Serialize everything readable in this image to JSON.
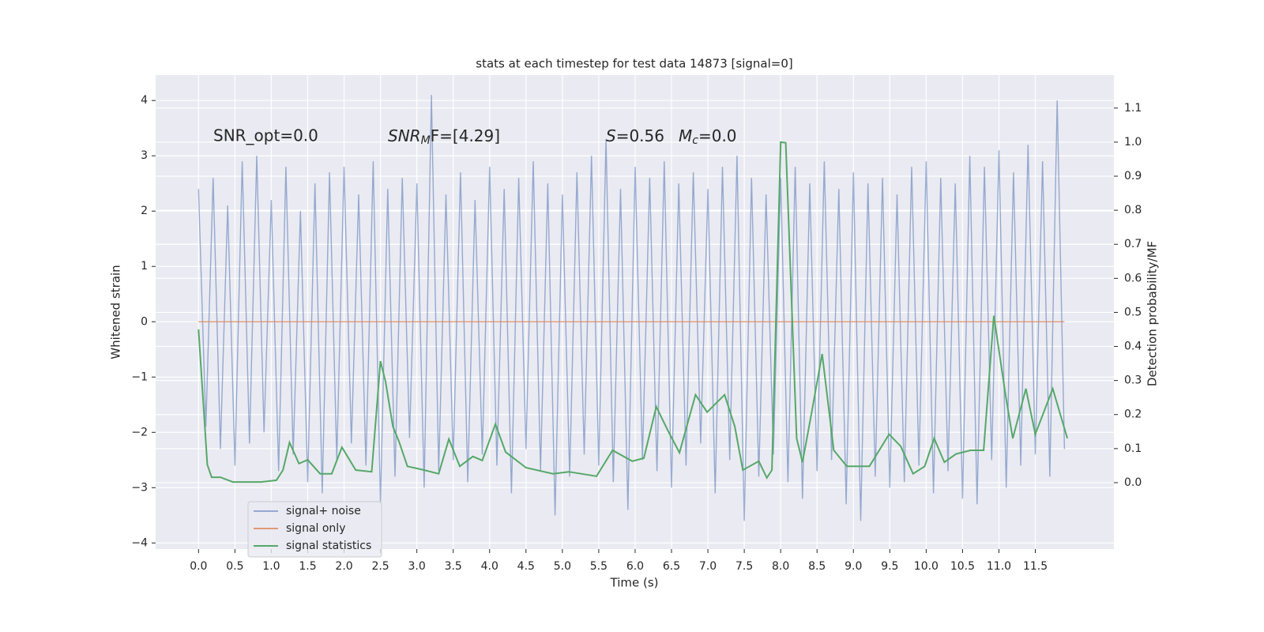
{
  "chart_data": {
    "type": "line",
    "title": "stats at each timestep for test data 14873 [signal=0]",
    "xlabel": "Time (s)",
    "ylabel": "Whitened strain",
    "y2label": "Detection probability/MF",
    "annotations": [
      "SNR_opt=0.0",
      [
        "SNR",
        "M",
        "F=[4.29]"
      ],
      [
        "S",
        "=0.56"
      ],
      [
        "M",
        "c",
        "=0.0"
      ]
    ],
    "xlim": [
      -0.59,
      12.58
    ],
    "ylim": [
      -4.11,
      4.46
    ],
    "y2lim": [
      -0.195,
      1.197
    ],
    "xticks": [
      {
        "value": 0,
        "label": "0.0"
      },
      0.5,
      {
        "value": 1,
        "label": "1.0"
      },
      1.5,
      {
        "value": 2,
        "label": "2.0"
      },
      2.5,
      {
        "value": 3,
        "label": "3.0"
      },
      3.5,
      {
        "value": 4,
        "label": "4.0"
      },
      4.5,
      {
        "value": 5,
        "label": "5.0"
      },
      5.5,
      {
        "value": 6,
        "label": "6.0"
      },
      6.5,
      {
        "value": 7,
        "label": "7.0"
      },
      7.5,
      {
        "value": 8,
        "label": "8.0"
      },
      8.5,
      {
        "value": 9,
        "label": "9.0"
      },
      9.5,
      {
        "value": 10,
        "label": "10.0"
      },
      10.5,
      {
        "value": 11,
        "label": "11.0"
      },
      11.5
    ],
    "yticks": [
      {
        "value": -4,
        "label": "−4"
      },
      {
        "value": -3,
        "label": "−3"
      },
      {
        "value": -2,
        "label": "−2"
      },
      {
        "value": -1,
        "label": "−1"
      },
      0,
      1,
      2,
      3,
      4
    ],
    "y2ticks": [
      {
        "value": 0,
        "label": "0.0"
      },
      0.1,
      0.2,
      0.3,
      0.4,
      0.5,
      0.6,
      0.7,
      0.8,
      0.9,
      {
        "value": 1,
        "label": "1.0"
      },
      1.1
    ],
    "grid": true,
    "legend": "lower left",
    "background": "#eaeaf2",
    "series": [
      {
        "name": "signal+ noise",
        "color": "#4c72b0",
        "alpha": 0.55,
        "x": [
          0.0,
          0.1,
          0.2,
          0.3,
          0.4,
          0.5,
          0.6,
          0.7,
          0.8,
          0.9,
          1.0,
          1.1,
          1.2,
          1.3,
          1.4,
          1.5,
          1.6,
          1.7,
          1.8,
          1.9,
          2.0,
          2.1,
          2.2,
          2.3,
          2.4,
          2.5,
          2.6,
          2.7,
          2.8,
          2.9,
          3.0,
          3.1,
          3.2,
          3.3,
          3.4,
          3.5,
          3.6,
          3.7,
          3.8,
          3.9,
          4.0,
          4.1,
          4.2,
          4.3,
          4.4,
          4.5,
          4.6,
          4.7,
          4.8,
          4.9,
          5.0,
          5.1,
          5.2,
          5.3,
          5.4,
          5.5,
          5.6,
          5.7,
          5.8,
          5.9,
          6.0,
          6.1,
          6.2,
          6.3,
          6.4,
          6.5,
          6.6,
          6.7,
          6.8,
          6.9,
          7.0,
          7.1,
          7.2,
          7.3,
          7.4,
          7.5,
          7.6,
          7.7,
          7.8,
          7.9,
          8.0,
          8.1,
          8.2,
          8.3,
          8.4,
          8.5,
          8.6,
          8.7,
          8.8,
          8.9,
          9.0,
          9.1,
          9.2,
          9.3,
          9.4,
          9.5,
          9.6,
          9.7,
          9.8,
          9.9,
          10.0,
          10.1,
          10.2,
          10.3,
          10.4,
          10.5,
          10.6,
          10.7,
          10.8,
          10.9,
          11.0,
          11.1,
          11.2,
          11.3,
          11.4,
          11.5,
          11.6,
          11.7,
          11.8,
          11.9
        ],
        "values": [
          2.4,
          -1.9,
          2.6,
          -2.3,
          2.1,
          -2.6,
          2.9,
          -2.2,
          3.0,
          -2.0,
          2.2,
          -2.7,
          2.8,
          -2.4,
          2.0,
          -2.9,
          2.5,
          -3.1,
          2.7,
          -2.5,
          2.8,
          -2.2,
          2.3,
          -2.6,
          2.9,
          -3.3,
          2.4,
          -2.8,
          2.6,
          -2.1,
          2.5,
          -3.0,
          4.1,
          -2.7,
          2.3,
          -2.5,
          2.7,
          -2.9,
          2.2,
          -2.4,
          2.8,
          -2.6,
          2.4,
          -3.1,
          2.6,
          -2.3,
          2.9,
          -2.7,
          2.5,
          -3.5,
          2.3,
          -2.8,
          2.7,
          -2.4,
          3.0,
          -2.6,
          3.3,
          -2.9,
          2.4,
          -3.4,
          2.8,
          -2.5,
          2.6,
          -2.7,
          2.9,
          -3.0,
          2.5,
          -2.6,
          2.7,
          -2.2,
          2.4,
          -3.1,
          2.8,
          -2.5,
          3.0,
          -3.6,
          2.6,
          -2.8,
          2.3,
          -2.4,
          2.6,
          -2.9,
          2.8,
          -3.2,
          2.5,
          -2.7,
          2.9,
          -2.5,
          2.4,
          -3.3,
          2.7,
          -3.6,
          2.5,
          -2.8,
          2.6,
          -3.0,
          2.3,
          -2.9,
          2.8,
          -2.6,
          2.9,
          -3.1,
          2.6,
          -2.7,
          2.5,
          -3.2,
          3.0,
          -3.3,
          2.8,
          -2.5,
          3.1,
          -3.0,
          2.7,
          -2.6,
          3.2,
          -2.4,
          2.9,
          -2.8,
          4.0,
          -2.3
        ]
      },
      {
        "name": "signal only",
        "color": "#dd8452",
        "alpha": 0.8,
        "x": [
          0.0,
          11.9
        ],
        "values": [
          0,
          0
        ]
      },
      {
        "name": "signal statistics",
        "color": "#55a868",
        "alpha": 1,
        "axis": "y2",
        "x": [
          0.0,
          0.12,
          0.18,
          0.3,
          0.47,
          0.86,
          1.07,
          1.16,
          1.25,
          1.38,
          1.5,
          1.67,
          1.83,
          1.97,
          2.16,
          2.38,
          2.5,
          2.57,
          2.67,
          2.76,
          2.87,
          3.06,
          3.3,
          3.44,
          3.59,
          3.77,
          3.9,
          4.08,
          4.22,
          4.5,
          4.87,
          5.09,
          5.47,
          5.69,
          5.96,
          6.12,
          6.29,
          6.45,
          6.61,
          6.83,
          6.99,
          7.23,
          7.37,
          7.48,
          7.7,
          7.81,
          7.88,
          8.0,
          8.07,
          8.22,
          8.3,
          8.43,
          8.57,
          8.73,
          8.91,
          9.22,
          9.49,
          9.65,
          9.82,
          9.98,
          10.11,
          10.25,
          10.41,
          10.61,
          10.79,
          10.93,
          11.09,
          11.19,
          11.37,
          11.5,
          11.74,
          11.94
        ],
        "values": [
          0.45,
          0.053,
          0.016,
          0.016,
          0.002,
          0.002,
          0.007,
          0.037,
          0.118,
          0.056,
          0.067,
          0.026,
          0.026,
          0.104,
          0.037,
          0.032,
          0.357,
          0.297,
          0.165,
          0.118,
          0.048,
          0.039,
          0.026,
          0.128,
          0.048,
          0.077,
          0.065,
          0.172,
          0.09,
          0.044,
          0.026,
          0.032,
          0.019,
          0.095,
          0.063,
          0.072,
          0.223,
          0.153,
          0.088,
          0.258,
          0.207,
          0.258,
          0.165,
          0.037,
          0.063,
          0.014,
          0.037,
          1.0,
          0.998,
          0.13,
          0.06,
          0.211,
          0.378,
          0.095,
          0.048,
          0.048,
          0.142,
          0.107,
          0.026,
          0.048,
          0.13,
          0.06,
          0.084,
          0.095,
          0.095,
          0.49,
          0.258,
          0.13,
          0.276,
          0.142,
          0.276,
          0.13
        ]
      }
    ]
  }
}
